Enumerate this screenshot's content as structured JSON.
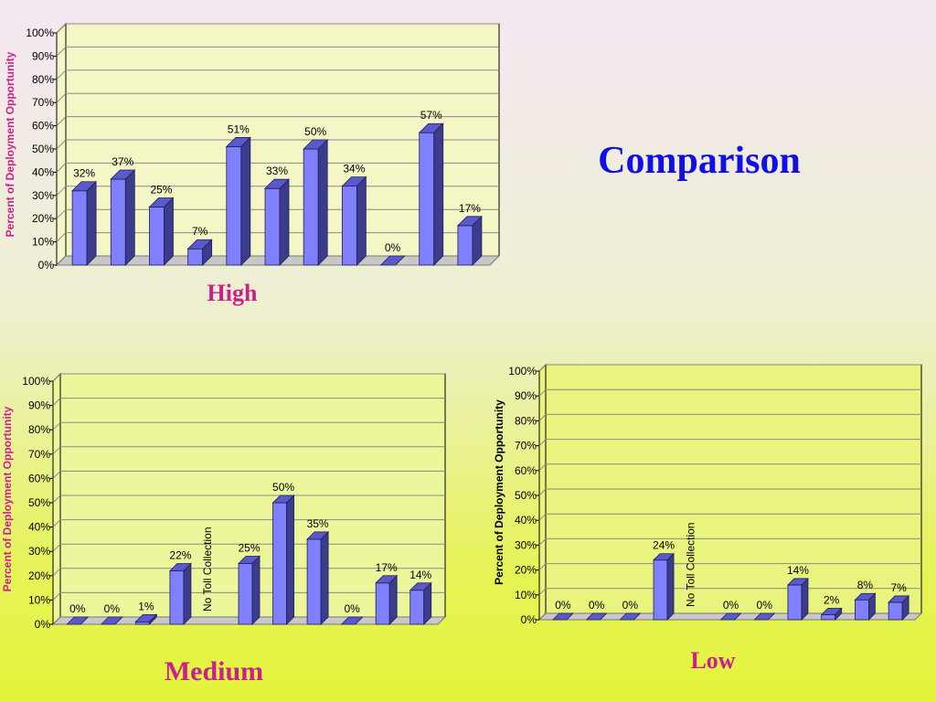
{
  "slide": {
    "title": "Comparison"
  },
  "chart_data": [
    {
      "type": "bar",
      "title": "High",
      "ylabel": "Percent of Deployment Opportunity",
      "ylim": [
        0,
        100
      ],
      "yticks": [
        "0%",
        "10%",
        "20%",
        "30%",
        "40%",
        "50%",
        "60%",
        "70%",
        "80%",
        "90%",
        "100%"
      ],
      "values": [
        32,
        37,
        25,
        7,
        51,
        33,
        50,
        34,
        0,
        57,
        17
      ],
      "labels": [
        "32%",
        "37%",
        "25%",
        "7%",
        "51%",
        "33%",
        "50%",
        "34%",
        "0%",
        "57%",
        "17%"
      ],
      "grid": true,
      "colors": {
        "bar_front": "#8080ff",
        "bar_side": "#3c3c8c",
        "bar_top": "#5a5acc",
        "plot_bg": "#f5f6c6",
        "ylabel": "#cc1f8c"
      }
    },
    {
      "type": "bar",
      "title": "Medium",
      "ylabel": "Percent of Deployment Opportunity",
      "ylim": [
        0,
        100
      ],
      "yticks": [
        "0%",
        "10%",
        "20%",
        "30%",
        "40%",
        "50%",
        "60%",
        "70%",
        "80%",
        "90%",
        "100%"
      ],
      "values": [
        0,
        0,
        1,
        22,
        null,
        25,
        50,
        35,
        0,
        17,
        14
      ],
      "labels": [
        "0%",
        "0%",
        "1%",
        "22%",
        "",
        "25%",
        "50%",
        "35%",
        "0%",
        "17%",
        "14%"
      ],
      "annotation": {
        "text": "No Toll Collection",
        "index": 4
      },
      "grid": true,
      "colors": {
        "bar_front": "#8080ff",
        "bar_side": "#3c3c8c",
        "bar_top": "#5a5acc",
        "plot_bg": "#ecf69a",
        "ylabel": "#cc1f8c"
      }
    },
    {
      "type": "bar",
      "title": "Low",
      "ylabel": "Percent of Deployment Opportunity",
      "ylim": [
        0,
        100
      ],
      "yticks": [
        "0%",
        "10%",
        "20%",
        "30%",
        "40%",
        "50%",
        "60%",
        "70%",
        "80%",
        "90%",
        "100%"
      ],
      "values": [
        0,
        0,
        0,
        24,
        null,
        0,
        0,
        14,
        2,
        8,
        7
      ],
      "labels": [
        "0%",
        "0%",
        "0%",
        "24%",
        "",
        "0%",
        "0%",
        "14%",
        "2%",
        "8%",
        "7%"
      ],
      "annotation": {
        "text": "No Toll Collection",
        "index": 4
      },
      "grid": true,
      "colors": {
        "bar_front": "#8080ff",
        "bar_side": "#3c3c8c",
        "bar_top": "#5a5acc",
        "plot_bg": "#e8f47e",
        "ylabel": "#000000"
      }
    }
  ]
}
